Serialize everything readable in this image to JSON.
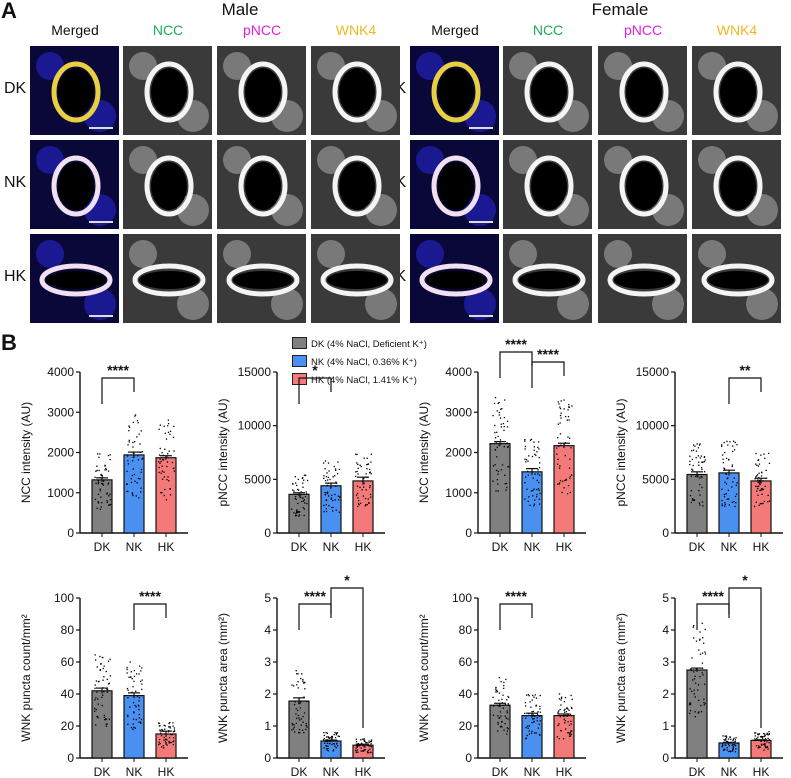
{
  "figure": {
    "panel_a_label": "A",
    "panel_b_label": "B",
    "male_title": "Male",
    "female_title": "Female",
    "columns": [
      {
        "label": "Merged",
        "color": "#111111"
      },
      {
        "label": "NCC",
        "color": "#1fa85a"
      },
      {
        "label": "pNCC",
        "color": "#e020e0"
      },
      {
        "label": "WNK4",
        "color": "#f0b820"
      }
    ],
    "rows": [
      "DK",
      "NK",
      "HK"
    ]
  },
  "legend": {
    "items": [
      {
        "label": "DK (4% NaCl, Deficient K⁺)",
        "color": "#808080"
      },
      {
        "label": "NK (4% NaCl, 0.36% K⁺)",
        "color": "#4a90f0"
      },
      {
        "label": "HK (4% NaCl, 1.41% K⁺)",
        "color": "#f47a7a"
      }
    ]
  },
  "chart_data": [
    {
      "type": "bar",
      "id": "male_ncc",
      "sex": "Male",
      "categories": [
        "DK",
        "NK",
        "HK"
      ],
      "values": [
        1320,
        1940,
        1870
      ],
      "sem": [
        50,
        70,
        50
      ],
      "ylabel": "NCC intensity (AU)",
      "ylim": [
        0,
        4000
      ],
      "yticks": [
        0,
        1000,
        2000,
        3000,
        4000
      ],
      "significance": [
        {
          "from": "DK",
          "to": "NK",
          "label": "****"
        }
      ]
    },
    {
      "type": "bar",
      "id": "male_pncc",
      "sex": "Male",
      "categories": [
        "DK",
        "NK",
        "HK"
      ],
      "values": [
        3600,
        4400,
        4850
      ],
      "sem": [
        150,
        250,
        350
      ],
      "ylabel": "pNCC intensity (AU)",
      "ylim": [
        0,
        15000
      ],
      "yticks": [
        0,
        5000,
        10000,
        15000
      ],
      "significance": [
        {
          "from": "DK",
          "to": "NK",
          "label": "*"
        }
      ]
    },
    {
      "type": "bar",
      "id": "female_ncc",
      "sex": "Female",
      "categories": [
        "DK",
        "NK",
        "HK"
      ],
      "values": [
        2220,
        1520,
        2170
      ],
      "sem": [
        50,
        80,
        60
      ],
      "ylabel": "NCC intensity (AU)",
      "ylim": [
        0,
        4000
      ],
      "yticks": [
        0,
        1000,
        2000,
        3000,
        4000
      ],
      "significance": [
        {
          "from": "DK",
          "to": "NK",
          "label": "****"
        },
        {
          "from": "NK",
          "to": "HK",
          "label": "****"
        }
      ]
    },
    {
      "type": "bar",
      "id": "female_pncc",
      "sex": "Female",
      "categories": [
        "DK",
        "NK",
        "HK"
      ],
      "values": [
        5450,
        5600,
        4850
      ],
      "sem": [
        250,
        250,
        250
      ],
      "ylabel": "pNCC intensity (AU)",
      "ylim": [
        0,
        15000
      ],
      "yticks": [
        0,
        5000,
        10000,
        15000
      ],
      "significance": [
        {
          "from": "NK",
          "to": "HK",
          "label": "**"
        }
      ]
    },
    {
      "type": "bar",
      "id": "male_wnk_count",
      "sex": "Male",
      "categories": [
        "DK",
        "NK",
        "HK"
      ],
      "values": [
        42,
        39,
        15
      ],
      "sem": [
        1.7,
        1.7,
        1.8
      ],
      "ylabel": "WNK puncta count/mm²",
      "ylim": [
        0,
        100
      ],
      "yticks": [
        0,
        20,
        40,
        60,
        80,
        100
      ],
      "significance": [
        {
          "from": "NK",
          "to": "HK",
          "label": "****"
        }
      ]
    },
    {
      "type": "bar",
      "id": "male_wnk_area",
      "sex": "Male",
      "categories": [
        "DK",
        "NK",
        "HK"
      ],
      "values": [
        1.78,
        0.53,
        0.4
      ],
      "sem": [
        0.1,
        0.03,
        0.03
      ],
      "ylabel": "WNK puncta area (mm²)",
      "ylim": [
        0,
        5
      ],
      "yticks": [
        0,
        1,
        2,
        3,
        4,
        5
      ],
      "significance": [
        {
          "from": "DK",
          "to": "NK",
          "label": "****"
        },
        {
          "from": "NK",
          "to": "HK",
          "label": "*"
        }
      ]
    },
    {
      "type": "bar",
      "id": "female_wnk_count",
      "sex": "Female",
      "categories": [
        "DK",
        "NK",
        "HK"
      ],
      "values": [
        33,
        26.5,
        26.5
      ],
      "sem": [
        1.2,
        1.5,
        1.0
      ],
      "ylabel": "WNK puncta count/mm²",
      "ylim": [
        0,
        100
      ],
      "yticks": [
        0,
        20,
        40,
        60,
        80,
        100
      ],
      "significance": [
        {
          "from": "DK",
          "to": "NK",
          "label": "****"
        }
      ]
    },
    {
      "type": "bar",
      "id": "female_wnk_area",
      "sex": "Female",
      "categories": [
        "DK",
        "NK",
        "HK"
      ],
      "values": [
        2.75,
        0.47,
        0.55
      ],
      "sem": [
        0.06,
        0.02,
        0.02
      ],
      "ylabel": "WNK puncta area (mm²)",
      "ylim": [
        0,
        5
      ],
      "yticks": [
        0,
        1,
        2,
        3,
        4,
        5
      ],
      "significance": [
        {
          "from": "DK",
          "to": "NK",
          "label": "****"
        },
        {
          "from": "NK",
          "to": "HK",
          "label": "*"
        }
      ]
    }
  ]
}
